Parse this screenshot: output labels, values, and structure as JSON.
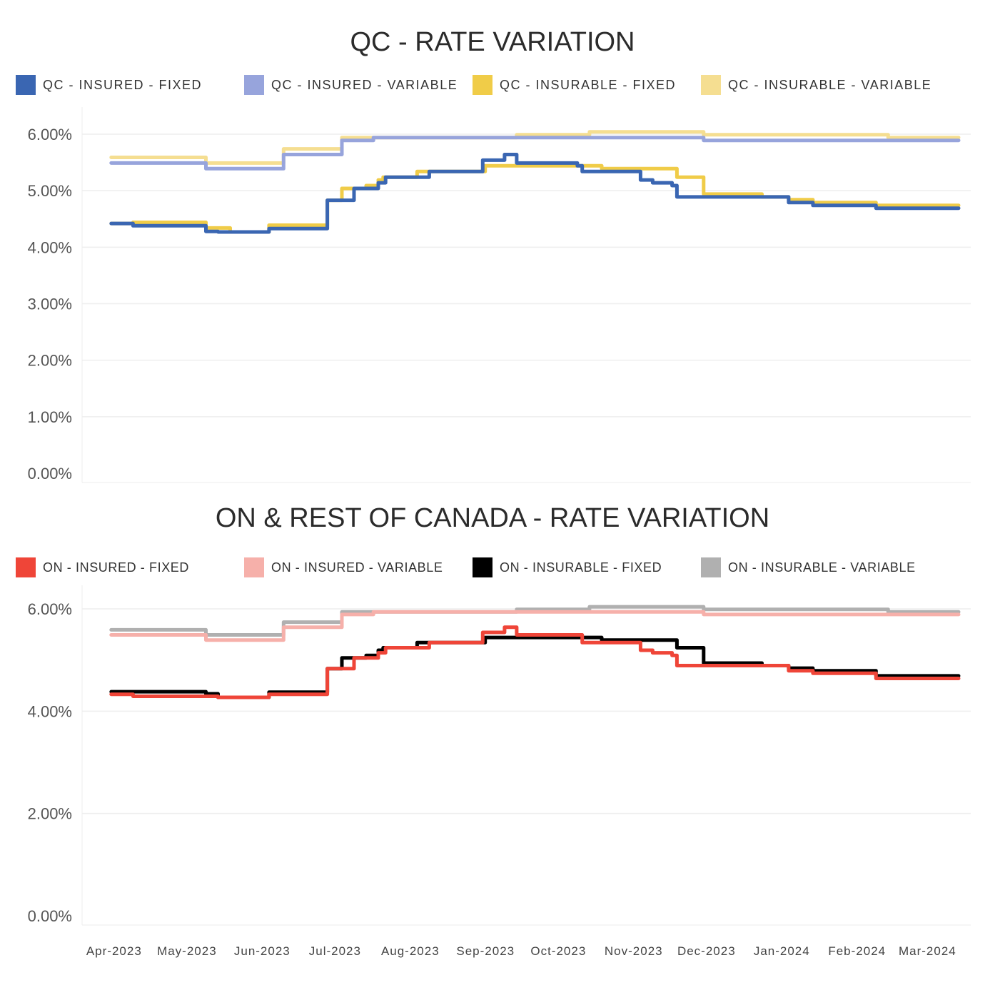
{
  "chart_data": [
    {
      "type": "line",
      "title": "QC - RATE VARIATION",
      "xlabel": "",
      "ylabel": "",
      "ylim": [
        0,
        6.2
      ],
      "yticks": [
        0,
        1,
        2,
        3,
        4,
        5,
        6
      ],
      "ytick_labels": [
        "0.00%",
        "1.00%",
        "2.00%",
        "3.00%",
        "4.00%",
        "5.00%",
        "6.00%"
      ],
      "xlim": [
        "2023-03-20",
        "2024-03-20"
      ],
      "xticks": [
        "2023-04-01",
        "2023-05-01",
        "2023-06-01",
        "2023-07-01",
        "2023-08-01",
        "2023-09-01",
        "2023-10-01",
        "2023-11-01",
        "2023-12-01",
        "2024-01-01",
        "2024-02-01",
        "2024-03-01"
      ],
      "xtick_labels": [
        "Apr-2023",
        "May-2023",
        "Jun-2023",
        "Jul-2023",
        "Aug-2023",
        "Sep-2023",
        "Oct-2023",
        "Nov-2023",
        "Dec-2023",
        "Jan-2024",
        "Feb-2024",
        "Mar-2024"
      ],
      "grid": true,
      "legend": "top",
      "series": [
        {
          "name": "QC - INSURABLE - VARIABLE",
          "color": "#f5de91",
          "points": [
            [
              "2023-04-01",
              5.59
            ],
            [
              "2023-05-10",
              5.49
            ],
            [
              "2023-06-11",
              5.74
            ],
            [
              "2023-07-05",
              5.94
            ],
            [
              "2023-09-15",
              5.99
            ],
            [
              "2023-10-15",
              6.04
            ],
            [
              "2023-12-01",
              5.99
            ],
            [
              "2024-02-15",
              5.94
            ],
            [
              "2024-03-15",
              5.94
            ]
          ]
        },
        {
          "name": "QC - INSURED - VARIABLE",
          "color": "#97a4dc",
          "points": [
            [
              "2023-04-01",
              5.49
            ],
            [
              "2023-05-10",
              5.39
            ],
            [
              "2023-06-11",
              5.64
            ],
            [
              "2023-07-05",
              5.89
            ],
            [
              "2023-07-18",
              5.94
            ],
            [
              "2023-12-01",
              5.89
            ],
            [
              "2024-03-15",
              5.89
            ]
          ]
        },
        {
          "name": "QC - INSURABLE - FIXED",
          "color": "#f0cc48",
          "points": [
            [
              "2023-04-01",
              4.42
            ],
            [
              "2023-04-10",
              4.44
            ],
            [
              "2023-05-10",
              4.34
            ],
            [
              "2023-05-20",
              4.27
            ],
            [
              "2023-06-05",
              4.39
            ],
            [
              "2023-06-29",
              4.83
            ],
            [
              "2023-07-05",
              5.04
            ],
            [
              "2023-07-15",
              5.09
            ],
            [
              "2023-07-20",
              5.19
            ],
            [
              "2023-07-22",
              5.24
            ],
            [
              "2023-08-05",
              5.34
            ],
            [
              "2023-09-01",
              5.34
            ],
            [
              "2023-09-02",
              5.44
            ],
            [
              "2023-10-20",
              5.39
            ],
            [
              "2023-11-20",
              5.24
            ],
            [
              "2023-12-01",
              4.94
            ],
            [
              "2023-12-25",
              4.89
            ],
            [
              "2024-01-05",
              4.84
            ],
            [
              "2024-01-15",
              4.79
            ],
            [
              "2024-02-10",
              4.74
            ],
            [
              "2024-03-15",
              4.74
            ]
          ]
        },
        {
          "name": "QC - INSURED - FIXED",
          "color": "#3a66b2",
          "points": [
            [
              "2023-04-01",
              4.42
            ],
            [
              "2023-04-10",
              4.38
            ],
            [
              "2023-05-10",
              4.28
            ],
            [
              "2023-05-15",
              4.27
            ],
            [
              "2023-06-05",
              4.33
            ],
            [
              "2023-06-29",
              4.83
            ],
            [
              "2023-07-10",
              5.04
            ],
            [
              "2023-07-20",
              5.14
            ],
            [
              "2023-07-23",
              5.24
            ],
            [
              "2023-08-10",
              5.34
            ],
            [
              "2023-09-01",
              5.54
            ],
            [
              "2023-09-10",
              5.64
            ],
            [
              "2023-09-15",
              5.49
            ],
            [
              "2023-10-10",
              5.44
            ],
            [
              "2023-10-12",
              5.34
            ],
            [
              "2023-11-01",
              5.34
            ],
            [
              "2023-11-05",
              5.19
            ],
            [
              "2023-11-10",
              5.14
            ],
            [
              "2023-11-18",
              5.09
            ],
            [
              "2023-11-20",
              4.89
            ],
            [
              "2024-01-05",
              4.79
            ],
            [
              "2024-01-15",
              4.74
            ],
            [
              "2024-02-10",
              4.69
            ],
            [
              "2024-03-15",
              4.69
            ]
          ]
        }
      ]
    },
    {
      "type": "line",
      "title": "ON & REST OF CANADA - RATE VARIATION",
      "xlabel": "",
      "ylabel": "",
      "ylim": [
        0,
        6.2
      ],
      "yticks": [
        0,
        2,
        4,
        6
      ],
      "ytick_labels": [
        "0.00%",
        "2.00%",
        "4.00%",
        "6.00%"
      ],
      "xlim": [
        "2023-03-20",
        "2024-03-20"
      ],
      "xticks": [
        "2023-04-01",
        "2023-05-01",
        "2023-06-01",
        "2023-07-01",
        "2023-08-01",
        "2023-09-01",
        "2023-10-01",
        "2023-11-01",
        "2023-12-01",
        "2024-01-01",
        "2024-02-01",
        "2024-03-01"
      ],
      "xtick_labels": [
        "Apr-2023",
        "May-2023",
        "Jun-2023",
        "Jul-2023",
        "Aug-2023",
        "Sep-2023",
        "Oct-2023",
        "Nov-2023",
        "Dec-2023",
        "Jan-2024",
        "Feb-2024",
        "Mar-2024"
      ],
      "grid": true,
      "legend": "top",
      "series": [
        {
          "name": "ON - INSURABLE - VARIABLE",
          "color": "#b0b0b0",
          "points": [
            [
              "2023-04-01",
              5.59
            ],
            [
              "2023-05-10",
              5.49
            ],
            [
              "2023-06-11",
              5.74
            ],
            [
              "2023-07-05",
              5.94
            ],
            [
              "2023-09-15",
              5.99
            ],
            [
              "2023-10-15",
              6.04
            ],
            [
              "2023-12-01",
              5.99
            ],
            [
              "2024-02-15",
              5.94
            ],
            [
              "2024-03-15",
              5.94
            ]
          ]
        },
        {
          "name": "ON - INSURED - VARIABLE",
          "color": "#f6b0aa",
          "points": [
            [
              "2023-04-01",
              5.49
            ],
            [
              "2023-05-10",
              5.39
            ],
            [
              "2023-06-11",
              5.64
            ],
            [
              "2023-07-05",
              5.89
            ],
            [
              "2023-07-18",
              5.94
            ],
            [
              "2023-12-01",
              5.89
            ],
            [
              "2024-03-15",
              5.89
            ]
          ]
        },
        {
          "name": "ON - INSURABLE - FIXED",
          "color": "#000000",
          "points": [
            [
              "2023-04-01",
              4.38
            ],
            [
              "2023-05-10",
              4.34
            ],
            [
              "2023-05-15",
              4.27
            ],
            [
              "2023-06-05",
              4.37
            ],
            [
              "2023-06-29",
              4.83
            ],
            [
              "2023-07-05",
              5.04
            ],
            [
              "2023-07-15",
              5.09
            ],
            [
              "2023-07-20",
              5.19
            ],
            [
              "2023-07-22",
              5.24
            ],
            [
              "2023-08-05",
              5.34
            ],
            [
              "2023-09-02",
              5.44
            ],
            [
              "2023-10-20",
              5.39
            ],
            [
              "2023-11-20",
              5.24
            ],
            [
              "2023-12-01",
              4.94
            ],
            [
              "2023-12-25",
              4.89
            ],
            [
              "2024-01-05",
              4.84
            ],
            [
              "2024-01-15",
              4.79
            ],
            [
              "2024-02-10",
              4.69
            ],
            [
              "2024-03-15",
              4.69
            ]
          ]
        },
        {
          "name": "ON - INSURED - FIXED",
          "color": "#ef4538",
          "points": [
            [
              "2023-04-01",
              4.33
            ],
            [
              "2023-04-10",
              4.29
            ],
            [
              "2023-05-15",
              4.27
            ],
            [
              "2023-06-05",
              4.33
            ],
            [
              "2023-06-29",
              4.83
            ],
            [
              "2023-07-10",
              5.04
            ],
            [
              "2023-07-20",
              5.14
            ],
            [
              "2023-07-23",
              5.24
            ],
            [
              "2023-08-10",
              5.34
            ],
            [
              "2023-09-01",
              5.54
            ],
            [
              "2023-09-10",
              5.64
            ],
            [
              "2023-09-15",
              5.49
            ],
            [
              "2023-10-12",
              5.34
            ],
            [
              "2023-11-05",
              5.19
            ],
            [
              "2023-11-10",
              5.14
            ],
            [
              "2023-11-18",
              5.09
            ],
            [
              "2023-11-20",
              4.89
            ],
            [
              "2024-01-05",
              4.79
            ],
            [
              "2024-01-15",
              4.74
            ],
            [
              "2024-02-10",
              4.64
            ],
            [
              "2024-03-15",
              4.64
            ]
          ]
        }
      ]
    }
  ],
  "legend_colors": {
    "qc": [
      "#3a66b2",
      "#97a4dc",
      "#f0cc48",
      "#f5de91"
    ],
    "on": [
      "#ef4538",
      "#f6b0aa",
      "#000000",
      "#b0b0b0"
    ]
  },
  "legend_labels": {
    "qc": [
      "QC - INSURED - FIXED",
      "QC - INSURED - VARIABLE",
      "QC - INSURABLE - FIXED",
      "QC - INSURABLE - VARIABLE"
    ],
    "on": [
      "ON - INSURED - FIXED",
      "ON - INSURED - VARIABLE",
      "ON - INSURABLE - FIXED",
      "ON - INSURABLE - VARIABLE"
    ]
  }
}
